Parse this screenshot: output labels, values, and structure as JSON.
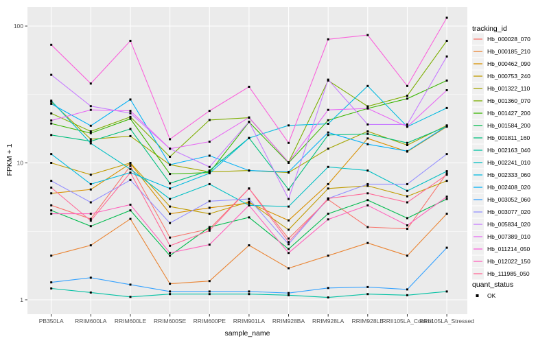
{
  "chart_data": {
    "type": "line",
    "title": "",
    "xlabel": "sample_name",
    "ylabel": "FPKM + 1",
    "y_scale": "log10",
    "y_ticks": [
      1,
      10,
      100
    ],
    "y_minor": [
      3.162,
      31.62
    ],
    "ylim": [
      0.93,
      140
    ],
    "grid": "on",
    "legend_position": "right",
    "legend_title": "tracking_id",
    "legend2_title": "quant_status",
    "legend2_items": [
      {
        "label": "OK",
        "symbol": "black-square"
      }
    ],
    "point_color": "#000000",
    "categories": [
      "PB350LA",
      "RRIM600LA",
      "RRIM600LE",
      "RRIM600SE",
      "RRIM600PE",
      "RRIM901LA",
      "RRIM928BA",
      "RRIM928LA",
      "RRIM928LE",
      "RRII105LA_Control",
      "RRII105LA_Stressed"
    ],
    "series": [
      {
        "name": "Hb_000028_070",
        "color": "#F8766D",
        "values": [
          4.9,
          3.9,
          9.5,
          2.85,
          3.3,
          6.5,
          2.8,
          5.4,
          3.4,
          3.3,
          8.4
        ]
      },
      {
        "name": "Hb_000185_210",
        "color": "#EA8331",
        "values": [
          2.1,
          2.5,
          3.9,
          1.31,
          1.37,
          2.5,
          1.7,
          2.1,
          2.6,
          2.1,
          4.25
        ]
      },
      {
        "name": "Hb_000462_090",
        "color": "#D89000",
        "values": [
          6.0,
          6.4,
          9.9,
          4.25,
          4.7,
          5.1,
          3.8,
          7.0,
          15.1,
          12.1,
          18.4
        ]
      },
      {
        "name": "Hb_000753_240",
        "color": "#C09B00",
        "values": [
          10.0,
          8.2,
          10.0,
          4.8,
          4.25,
          5.2,
          3.25,
          6.5,
          6.8,
          5.7,
          7.4
        ]
      },
      {
        "name": "Hb_001322_110",
        "color": "#A3A500",
        "values": [
          28.0,
          14.9,
          15.7,
          9.7,
          8.6,
          8.8,
          8.5,
          12.7,
          17.0,
          13.5,
          18.8
        ]
      },
      {
        "name": "Hb_001360_070",
        "color": "#7CAE00",
        "values": [
          23.0,
          17.0,
          21.7,
          11.1,
          20.6,
          21.4,
          10.1,
          40.0,
          25.9,
          31.0,
          78.0
        ]
      },
      {
        "name": "Hb_001427_200",
        "color": "#39B600",
        "values": [
          19.4,
          16.5,
          21.0,
          8.3,
          8.5,
          19.9,
          10.0,
          20.5,
          25.0,
          29.5,
          40.0
        ]
      },
      {
        "name": "Hb_001584_200",
        "color": "#00BB4E",
        "values": [
          4.5,
          3.45,
          4.5,
          2.1,
          3.4,
          4.0,
          2.35,
          4.25,
          5.35,
          3.95,
          5.45
        ]
      },
      {
        "name": "Hb_001811_160",
        "color": "#00BF7D",
        "values": [
          16.0,
          14.4,
          17.7,
          7.1,
          8.8,
          15.2,
          6.4,
          16.0,
          16.3,
          14.0,
          18.5
        ]
      },
      {
        "name": "Hb_002163_040",
        "color": "#00C1A3",
        "values": [
          1.21,
          1.13,
          1.05,
          1.1,
          1.1,
          1.1,
          1.08,
          1.04,
          1.1,
          1.08,
          1.15
        ]
      },
      {
        "name": "Hb_002241_010",
        "color": "#00BFC4",
        "values": [
          28.5,
          13.9,
          9.0,
          5.45,
          7.0,
          4.9,
          4.8,
          9.35,
          8.8,
          6.25,
          8.7
        ]
      },
      {
        "name": "Hb_002333_060",
        "color": "#00BAE0",
        "values": [
          11.6,
          7.0,
          8.5,
          6.5,
          8.4,
          15.2,
          18.8,
          19.3,
          36.5,
          18.4,
          25.2
        ]
      },
      {
        "name": "Hb_002408_020",
        "color": "#00B0F6",
        "values": [
          27.0,
          18.7,
          29.1,
          9.7,
          11.3,
          8.8,
          8.6,
          16.7,
          13.7,
          12.2,
          18.6
        ]
      },
      {
        "name": "Hb_003052_060",
        "color": "#35A2FF",
        "values": [
          1.34,
          1.45,
          1.29,
          1.15,
          1.15,
          1.15,
          1.12,
          1.22,
          1.24,
          1.19,
          2.4
        ]
      },
      {
        "name": "Hb_003077_020",
        "color": "#9590FF",
        "values": [
          7.4,
          5.15,
          7.5,
          3.64,
          5.25,
          5.45,
          2.55,
          5.5,
          7.0,
          7.0,
          11.6
        ]
      },
      {
        "name": "Hb_005834_020",
        "color": "#C77CFF",
        "values": [
          44.0,
          26.0,
          23.1,
          12.7,
          9.35,
          20.0,
          5.45,
          40.6,
          19.1,
          19.1,
          60.0
        ]
      },
      {
        "name": "Hb_007389_010",
        "color": "#E76BF3",
        "values": [
          20.4,
          24.4,
          24.0,
          12.7,
          14.3,
          21.5,
          10.1,
          24.4,
          25.0,
          18.4,
          34.0
        ]
      },
      {
        "name": "Hb_011214_050",
        "color": "#FA62DB",
        "values": [
          73.0,
          38.0,
          78.0,
          14.9,
          24.0,
          36.0,
          14.0,
          80.0,
          86.0,
          36.5,
          115.0
        ]
      },
      {
        "name": "Hb_012022_150",
        "color": "#FF62BC",
        "values": [
          4.25,
          4.25,
          4.95,
          2.2,
          2.53,
          4.9,
          2.2,
          3.87,
          4.9,
          3.5,
          5.67
        ]
      },
      {
        "name": "Hb_111985_050",
        "color": "#FF6A98",
        "values": [
          6.6,
          3.78,
          8.5,
          2.48,
          3.2,
          6.5,
          2.65,
          5.5,
          6.0,
          5.15,
          8.2
        ]
      }
    ]
  },
  "style": {
    "panel_bg": "#EBEBEB",
    "grid_color": "#FFFFFF",
    "tick_label_color": "#4D4D4D",
    "tick_color": "#333333",
    "legend_key_bg": "#F0F0F0"
  }
}
